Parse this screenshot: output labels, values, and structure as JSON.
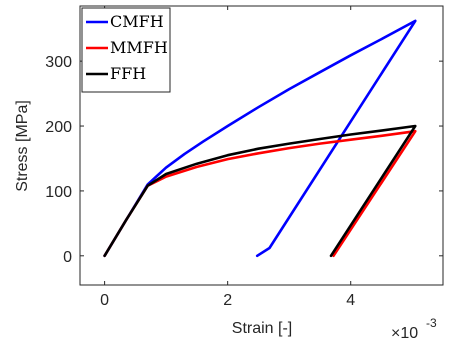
{
  "chart_data": {
    "type": "line",
    "xlabel": "Strain [-]",
    "ylabel": "Stress [MPa]",
    "x_multiplier_base": "×10",
    "x_multiplier_exponent": "-3",
    "xlim": [
      -0.0004,
      0.0055
    ],
    "ylim": [
      -45,
      385
    ],
    "xticks": [
      0,
      0.002,
      0.004
    ],
    "xtick_labels": [
      "0",
      "2",
      "4"
    ],
    "yticks": [
      0,
      100,
      200,
      300
    ],
    "ytick_labels": [
      "0",
      "100",
      "200",
      "300"
    ],
    "grid": false,
    "legend_position": "top-left",
    "series": [
      {
        "name": "CMFH",
        "color": "#0000ff",
        "x": [
          0,
          0.00035,
          0.0007,
          0.00085,
          0.001,
          0.0013,
          0.0016,
          0.002,
          0.0025,
          0.003,
          0.0035,
          0.004,
          0.0045,
          0.00505,
          0.00268,
          0.00248
        ],
        "y": [
          0,
          55,
          110,
          123,
          136,
          157,
          176,
          200,
          229,
          257,
          283,
          309,
          334,
          362,
          12,
          0
        ]
      },
      {
        "name": "MMFH",
        "color": "#ff0000",
        "x": [
          0,
          0.00035,
          0.0007,
          0.00085,
          0.001,
          0.0015,
          0.002,
          0.0025,
          0.003,
          0.0035,
          0.004,
          0.0045,
          0.00505,
          0.00372
        ],
        "y": [
          0,
          55,
          108,
          115,
          122,
          137,
          149,
          158,
          166,
          173,
          179,
          185,
          192,
          0
        ]
      },
      {
        "name": "FFH",
        "color": "#000000",
        "x": [
          0,
          0.00035,
          0.0007,
          0.00085,
          0.001,
          0.0015,
          0.002,
          0.0025,
          0.003,
          0.0035,
          0.004,
          0.0045,
          0.00505,
          0.00368
        ],
        "y": [
          0,
          55,
          108,
          117,
          126,
          142,
          155,
          165,
          173,
          180,
          187,
          193,
          200,
          0
        ]
      }
    ]
  }
}
